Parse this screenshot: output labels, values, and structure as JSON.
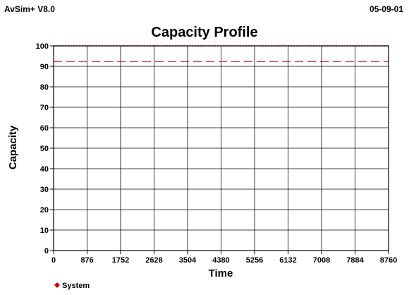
{
  "header": {
    "app_name": "AvSim+ V8.0",
    "date": "05-09-01"
  },
  "chart_data": {
    "type": "line",
    "title": "Capacity Profile",
    "xlabel": "Time",
    "ylabel": "Capacity",
    "xlim": [
      0,
      8760
    ],
    "ylim": [
      0,
      100
    ],
    "x_ticks": [
      0,
      876,
      1752,
      2628,
      3504,
      4380,
      5256,
      6132,
      7008,
      7884,
      8760
    ],
    "y_ticks": [
      0,
      10,
      20,
      30,
      40,
      50,
      60,
      70,
      80,
      90,
      100
    ],
    "grid": true,
    "legend_position": "bottom-left",
    "series": [
      {
        "name": "System",
        "color": "#cc0000",
        "marker": "diamond",
        "x": [
          0,
          8760
        ],
        "values": [
          100,
          100
        ]
      }
    ],
    "reference_lines": [
      {
        "y": 92.3,
        "color": "#cc0000",
        "style": "dashed"
      }
    ]
  }
}
